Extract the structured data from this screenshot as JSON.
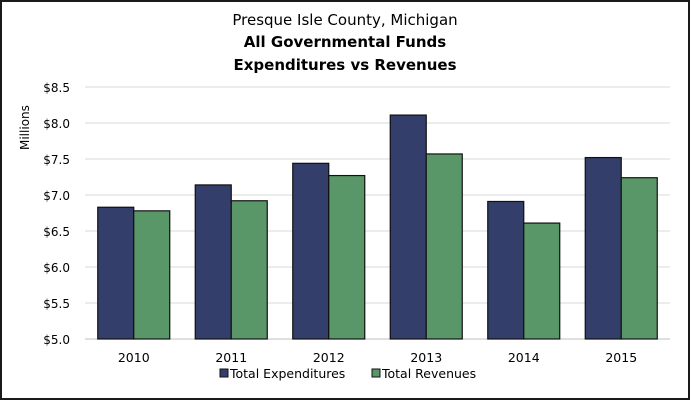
{
  "chart_data": {
    "type": "bar",
    "title": "Presque Isle County, Michigan",
    "subtitle_lines": [
      "All Governmental Funds",
      "Expenditures vs Revenues"
    ],
    "xlabel": "",
    "ylabel": "Millions",
    "categories": [
      "2010",
      "2011",
      "2012",
      "2013",
      "2014",
      "2015"
    ],
    "series": [
      {
        "name": "Total Expenditures",
        "color": "#333F6A",
        "values": [
          6.83,
          7.14,
          7.44,
          8.11,
          6.91,
          7.52
        ]
      },
      {
        "name": "Total Revenues",
        "color": "#5A9768",
        "values": [
          6.78,
          6.92,
          7.27,
          7.57,
          6.61,
          7.24
        ]
      }
    ],
    "ylim": [
      5.0,
      8.5
    ],
    "yticks": [
      5.0,
      5.5,
      6.0,
      6.5,
      7.0,
      7.5,
      8.0,
      8.5
    ],
    "ytick_labels": [
      "$5.0",
      "$5.5",
      "$6.0",
      "$6.5",
      "$7.0",
      "$7.5",
      "$8.0",
      "$8.5"
    ],
    "grid": true,
    "legend_position": "bottom"
  }
}
